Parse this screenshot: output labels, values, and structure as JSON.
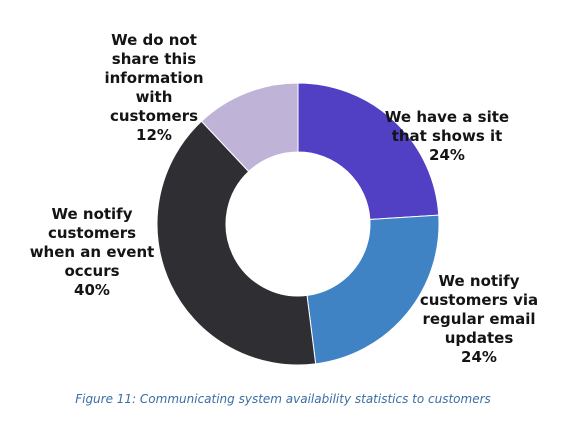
{
  "chart_data": {
    "type": "pie",
    "donut": true,
    "title": "",
    "categories": [
      "We have a site that shows it",
      "We notify customers via regular email updates",
      "We notify customers when an event occurs",
      "We do not share this information with customers"
    ],
    "values": [
      24,
      24,
      40,
      12
    ],
    "value_labels": [
      "24%",
      "24%",
      "40%",
      "12%"
    ],
    "label_text": [
      "We have a site\nthat shows it",
      "We notify\ncustomers via\nregular email\nupdates",
      "We notify\ncustomers\nwhen an event\noccurs",
      "We do not\nshare this\ninformation\nwith\ncustomers"
    ],
    "colors": [
      "#5140c4",
      "#3f83c4",
      "#2e2e33",
      "#bfb3d8"
    ],
    "legend": "none"
  },
  "caption": "Figure 11: Communicating system availability statistics to customers"
}
